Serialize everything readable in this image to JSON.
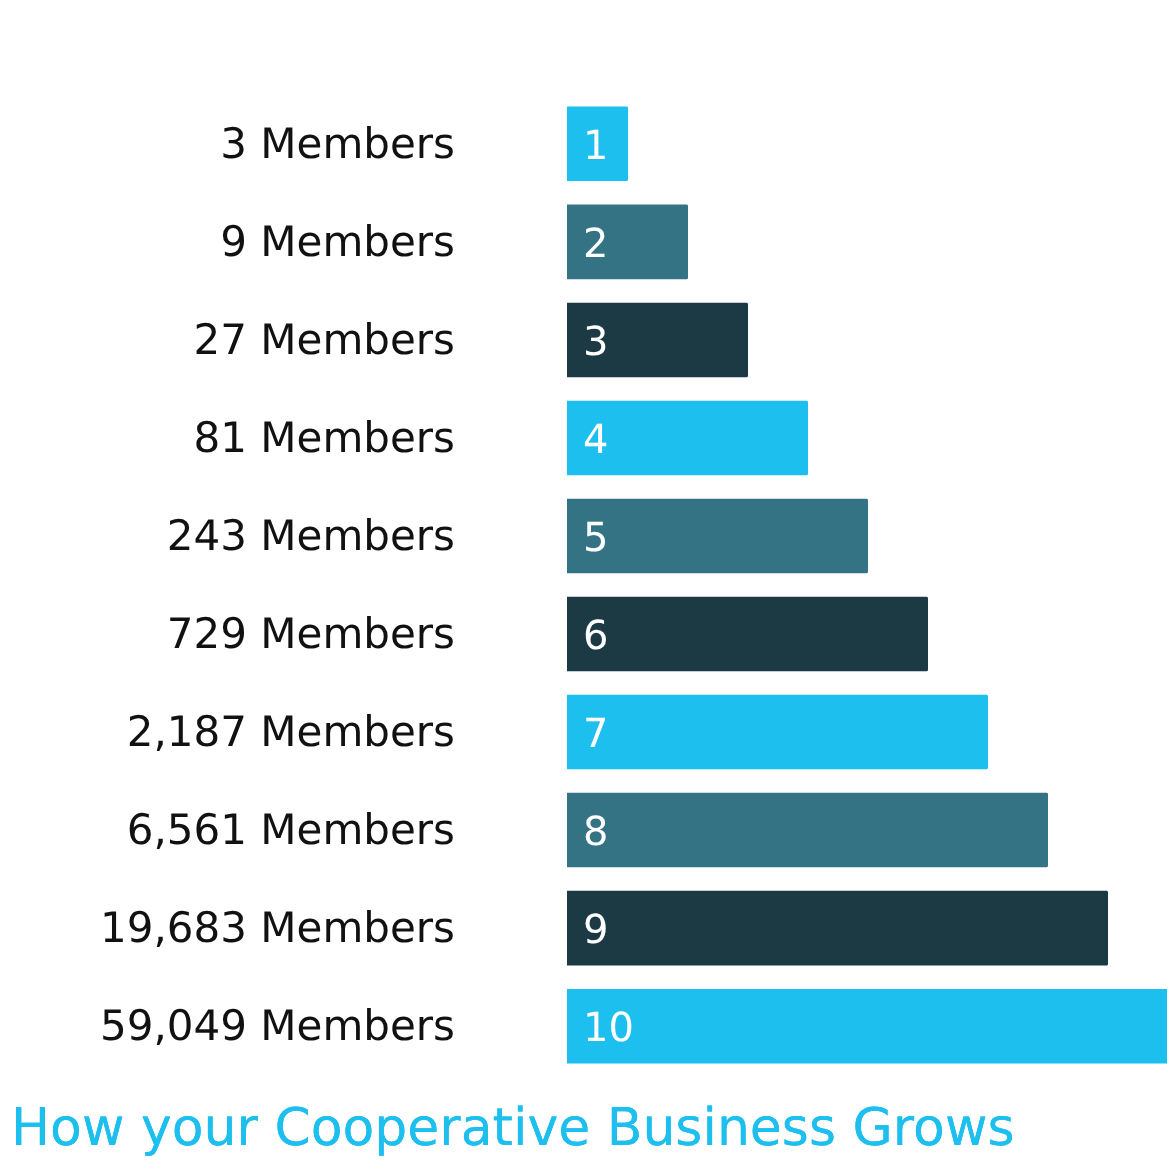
{
  "chart_data": {
    "type": "bar",
    "orientation": "horizontal",
    "xlim": [
      0,
      10
    ],
    "data_labels": true,
    "title": "How your Cooperative Business Grows",
    "categories": [
      "3 Members",
      "9 Members",
      "27 Members",
      "81 Members",
      "243 Members",
      "729 Members",
      "2,187 Members",
      "6,561 Members",
      "19,683 Members",
      "59,049 Members"
    ],
    "values": [
      1,
      2,
      3,
      4,
      5,
      6,
      7,
      8,
      9,
      10
    ],
    "colors": [
      "#1dbfef",
      "#347384",
      "#1b3a44",
      "#1dbfef",
      "#347384",
      "#1b3a44",
      "#1dbfef",
      "#347384",
      "#1b3a44",
      "#1dbfef"
    ]
  }
}
